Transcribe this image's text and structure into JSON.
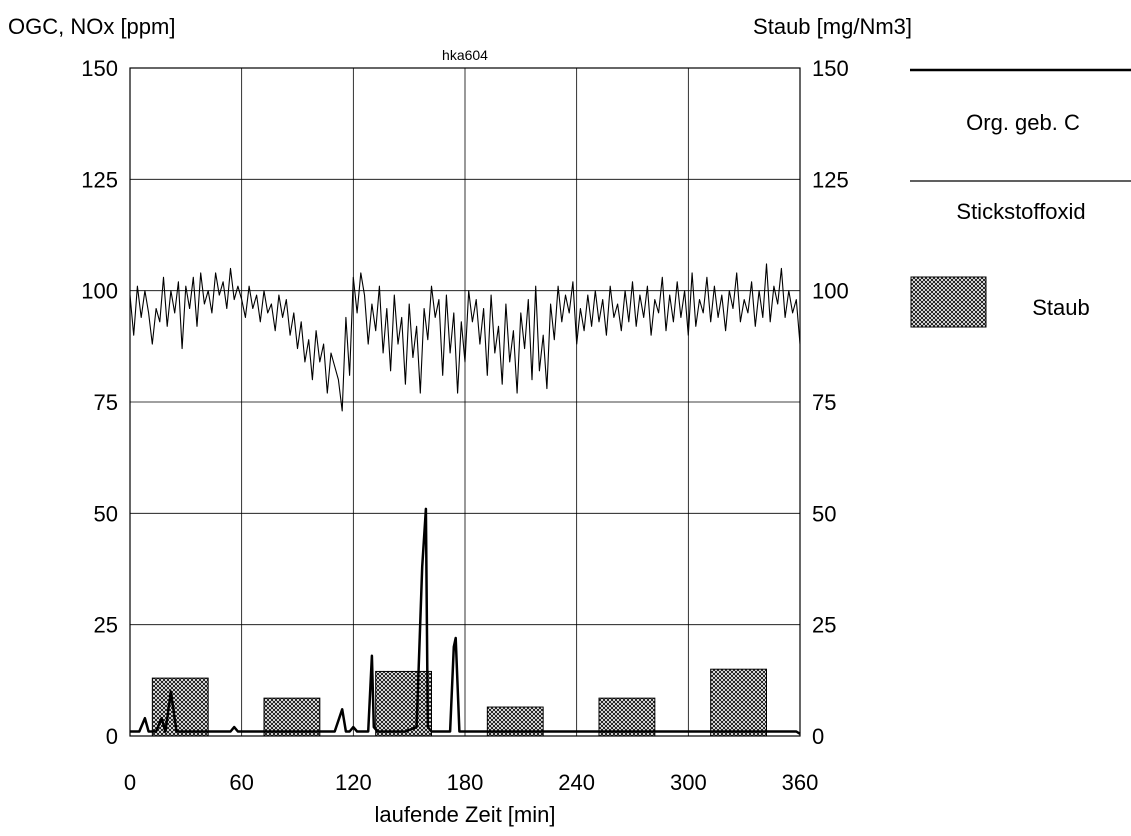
{
  "chart_data": {
    "type": "line",
    "title": "hka604",
    "ylabel_left": "OGC, NOx [ppm]",
    "ylabel_right": "Staub [mg/Nm3]",
    "xlabel": "laufende Zeit [min]",
    "xlim": [
      0,
      360
    ],
    "ylim": [
      0,
      150
    ],
    "y2lim": [
      0,
      150
    ],
    "xticks": [
      "0",
      "60",
      "120",
      "180",
      "240",
      "300",
      "360"
    ],
    "yticks": [
      "0",
      "25",
      "50",
      "75",
      "100",
      "125",
      "150"
    ],
    "y2ticks": [
      "0",
      "25",
      "50",
      "75",
      "100",
      "125",
      "150"
    ],
    "grid": true,
    "legend_position": "right",
    "legend": [
      {
        "label": "Org. geb. C",
        "style": "line-thick"
      },
      {
        "label": "Stickstoffoxid",
        "style": "line-thin"
      },
      {
        "label": "Staub",
        "style": "hatched-bar"
      }
    ],
    "series": [
      {
        "name": "Stickstoffoxid",
        "axis": "left",
        "style": "line-thin",
        "x": [
          0,
          2,
          4,
          6,
          8,
          10,
          12,
          14,
          16,
          18,
          20,
          22,
          24,
          26,
          28,
          30,
          32,
          34,
          36,
          38,
          40,
          42,
          44,
          46,
          48,
          50,
          52,
          54,
          56,
          58,
          60,
          62,
          64,
          66,
          68,
          70,
          72,
          74,
          76,
          78,
          80,
          82,
          84,
          86,
          88,
          90,
          92,
          94,
          96,
          98,
          100,
          102,
          104,
          106,
          108,
          110,
          112,
          114,
          116,
          118,
          120,
          122,
          124,
          126,
          128,
          130,
          132,
          134,
          136,
          138,
          140,
          142,
          144,
          146,
          148,
          150,
          152,
          154,
          156,
          158,
          160,
          162,
          164,
          166,
          168,
          170,
          172,
          174,
          176,
          178,
          180,
          182,
          184,
          186,
          188,
          190,
          192,
          194,
          196,
          198,
          200,
          202,
          204,
          206,
          208,
          210,
          212,
          214,
          216,
          218,
          220,
          222,
          224,
          226,
          228,
          230,
          232,
          234,
          236,
          238,
          240,
          242,
          244,
          246,
          248,
          250,
          252,
          254,
          256,
          258,
          260,
          262,
          264,
          266,
          268,
          270,
          272,
          274,
          276,
          278,
          280,
          282,
          284,
          286,
          288,
          290,
          292,
          294,
          296,
          298,
          300,
          302,
          304,
          306,
          308,
          310,
          312,
          314,
          316,
          318,
          320,
          322,
          324,
          326,
          328,
          330,
          332,
          334,
          336,
          338,
          340,
          342,
          344,
          346,
          348,
          350,
          352,
          354,
          356,
          358,
          360
        ],
        "values": [
          99,
          90,
          101,
          94,
          100,
          95,
          88,
          96,
          93,
          103,
          92,
          100,
          95,
          102,
          87,
          101,
          96,
          103,
          92,
          104,
          97,
          100,
          95,
          104,
          99,
          102,
          96,
          105,
          98,
          101,
          98,
          94,
          101,
          96,
          99,
          93,
          100,
          95,
          97,
          91,
          99,
          94,
          98,
          90,
          95,
          87,
          93,
          84,
          89,
          80,
          91,
          84,
          88,
          77,
          86,
          83,
          80,
          73,
          94,
          81,
          103,
          95,
          104,
          99,
          88,
          97,
          91,
          101,
          86,
          96,
          82,
          99,
          88,
          94,
          79,
          97,
          85,
          92,
          77,
          96,
          89,
          101,
          94,
          98,
          81,
          99,
          86,
          95,
          77,
          93,
          84,
          100,
          93,
          98,
          88,
          96,
          81,
          99,
          86,
          92,
          79,
          97,
          84,
          91,
          77,
          95,
          87,
          98,
          80,
          101,
          82,
          90,
          78,
          97,
          89,
          101,
          93,
          99,
          95,
          102,
          88,
          96,
          91,
          99,
          92,
          100,
          93,
          98,
          90,
          101,
          94,
          97,
          91,
          100,
          93,
          102,
          92,
          99,
          94,
          101,
          90,
          98,
          95,
          103,
          91,
          99,
          93,
          102,
          94,
          100,
          90,
          104,
          92,
          98,
          95,
          103,
          93,
          101,
          94,
          99,
          91,
          100,
          96,
          104,
          93,
          98,
          95,
          102,
          92,
          100,
          94,
          106,
          93,
          101,
          97,
          105,
          94,
          100,
          95,
          98,
          88
        ]
      },
      {
        "name": "Org. geb. C",
        "axis": "left",
        "style": "line-thick",
        "x": [
          0,
          5,
          8,
          10,
          14,
          17,
          19,
          22,
          25,
          28,
          30,
          40,
          48,
          54,
          56,
          58,
          60,
          80,
          100,
          110,
          114,
          116,
          118,
          120,
          122,
          124,
          128,
          130,
          131,
          133,
          135,
          140,
          148,
          154,
          157,
          159,
          160,
          162,
          164,
          168,
          170,
          172,
          174,
          175,
          177,
          180,
          200,
          220,
          240,
          260,
          280,
          300,
          320,
          340,
          350,
          353,
          355,
          358,
          360
        ],
        "values": [
          1,
          1,
          4,
          1,
          1,
          4,
          1,
          10,
          1,
          1,
          1,
          1,
          1,
          1,
          2,
          1,
          1,
          1,
          1,
          1,
          6,
          1,
          1,
          2,
          1,
          1,
          1,
          18,
          2,
          1,
          1,
          1,
          1,
          2,
          38,
          51,
          2,
          1,
          1,
          1,
          1,
          1,
          20,
          22,
          1,
          1,
          1,
          1,
          1,
          1,
          1,
          1,
          1,
          1,
          1,
          1,
          1,
          1,
          0.5
        ]
      }
    ],
    "staub_bars": [
      {
        "x_start": 12,
        "x_end": 42,
        "value": 13
      },
      {
        "x_start": 72,
        "x_end": 102,
        "value": 8.5
      },
      {
        "x_start": 132,
        "x_end": 162,
        "value": 14.5
      },
      {
        "x_start": 192,
        "x_end": 222,
        "value": 6.5
      },
      {
        "x_start": 252,
        "x_end": 282,
        "value": 8.5
      },
      {
        "x_start": 312,
        "x_end": 342,
        "value": 15
      }
    ]
  }
}
